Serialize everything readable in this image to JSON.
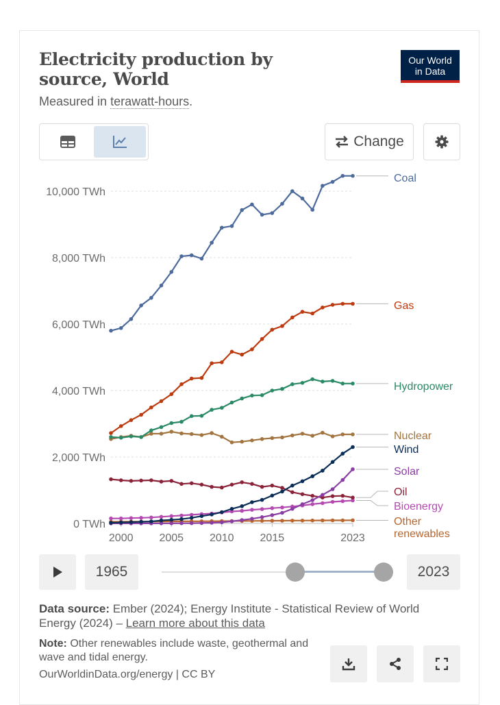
{
  "header": {
    "title": "Electricity production by source, World",
    "subtitle_prefix": "Measured in ",
    "subtitle_term": "terawatt-hours",
    "subtitle_suffix": "."
  },
  "logo": {
    "line1": "Our World",
    "line2": "in Data"
  },
  "controls": {
    "change_label": "Change"
  },
  "timeline": {
    "start_year": "1965",
    "end_year": "2023",
    "range_start_fraction": 0.6,
    "range_end_fraction": 1.0
  },
  "footer": {
    "source_label": "Data source:",
    "source_text": " Ember (2024); Energy Institute - Statistical Review of World Energy (2024) – ",
    "source_link": "Learn more about this data",
    "note_label": "Note:",
    "note_text": " Other renewables include waste, geothermal and wave and tidal energy.",
    "credit": "OurWorldinData.org/energy | CC BY"
  },
  "colors": {
    "coal": "#4c6a9c",
    "gas": "#bd3b10",
    "hydropower": "#2a8a66",
    "nuclear": "#a2743f",
    "wind": "#0a2d57",
    "solar": "#8a3ea3",
    "oil": "#8b2338",
    "bioenergy": "#b44ab1",
    "other_renewables": "#b8652e"
  },
  "chart_data": {
    "type": "line",
    "x": [
      1999,
      2000,
      2001,
      2002,
      2003,
      2004,
      2005,
      2006,
      2007,
      2008,
      2009,
      2010,
      2011,
      2012,
      2013,
      2014,
      2015,
      2016,
      2017,
      2018,
      2019,
      2020,
      2021,
      2022,
      2023
    ],
    "x_ticks": [
      2000,
      2005,
      2010,
      2015,
      2023
    ],
    "y_ticks": [
      0,
      2000,
      4000,
      6000,
      8000,
      10000
    ],
    "y_tick_labels": [
      "0 TWh",
      "2,000 TWh",
      "4,000 TWh",
      "6,000 TWh",
      "8,000 TWh",
      "10,000 TWh"
    ],
    "xlim": [
      1999,
      2023
    ],
    "ylim": [
      0,
      10500
    ],
    "series": [
      {
        "name": "Coal",
        "key": "coal",
        "values": [
          5800,
          5880,
          6150,
          6560,
          6790,
          7160,
          7570,
          8040,
          8070,
          7970,
          8450,
          8900,
          8950,
          9430,
          9600,
          9290,
          9340,
          9620,
          10000,
          9780,
          9440,
          10160,
          10280,
          10460,
          10460
        ]
      },
      {
        "name": "Gas",
        "key": "gas",
        "values": [
          2720,
          2930,
          3110,
          3270,
          3490,
          3680,
          3890,
          4190,
          4360,
          4380,
          4820,
          4850,
          5170,
          5080,
          5240,
          5550,
          5830,
          5940,
          6200,
          6370,
          6320,
          6500,
          6580,
          6610,
          6610
        ]
      },
      {
        "name": "Hydropower",
        "key": "hydropower",
        "values": [
          2600,
          2580,
          2620,
          2600,
          2800,
          2900,
          3020,
          3060,
          3230,
          3240,
          3420,
          3480,
          3640,
          3760,
          3850,
          3860,
          4000,
          4050,
          4190,
          4230,
          4340,
          4270,
          4290,
          4210,
          4210
        ]
      },
      {
        "name": "Nuclear",
        "key": "nuclear",
        "values": [
          2540,
          2600,
          2640,
          2600,
          2700,
          2700,
          2760,
          2710,
          2690,
          2660,
          2720,
          2610,
          2440,
          2460,
          2500,
          2540,
          2570,
          2590,
          2650,
          2700,
          2640,
          2730,
          2620,
          2680,
          2680
        ]
      },
      {
        "name": "Wind",
        "key": "wind",
        "values": [
          20,
          30,
          40,
          50,
          60,
          90,
          110,
          130,
          170,
          220,
          270,
          340,
          440,
          520,
          640,
          710,
          840,
          960,
          1140,
          1270,
          1420,
          1590,
          1850,
          2100,
          2300
        ]
      },
      {
        "name": "Solar",
        "key": "solar",
        "values": [
          2,
          2,
          2,
          2,
          3,
          4,
          5,
          7,
          9,
          13,
          20,
          32,
          63,
          100,
          140,
          190,
          250,
          320,
          440,
          580,
          700,
          860,
          1030,
          1310,
          1630
        ]
      },
      {
        "name": "Oil",
        "key": "oil",
        "values": [
          1330,
          1300,
          1280,
          1290,
          1300,
          1260,
          1280,
          1190,
          1210,
          1170,
          1100,
          1080,
          1170,
          1240,
          1190,
          1100,
          1140,
          1070,
          940,
          880,
          830,
          780,
          820,
          830,
          780
        ]
      },
      {
        "name": "Bioenergy",
        "key": "bioenergy",
        "values": [
          150,
          150,
          160,
          170,
          180,
          200,
          220,
          240,
          260,
          280,
          300,
          330,
          360,
          380,
          410,
          430,
          460,
          480,
          510,
          540,
          580,
          610,
          650,
          670,
          690
        ]
      },
      {
        "name": "Other renewables",
        "key": "other_renewables",
        "values": [
          50,
          52,
          54,
          56,
          58,
          60,
          62,
          64,
          66,
          67,
          68,
          70,
          72,
          74,
          76,
          78,
          80,
          82,
          84,
          86,
          88,
          90,
          92,
          93,
          94
        ]
      }
    ],
    "series_labels": [
      "Coal",
      "Gas",
      "Hydropower",
      "Nuclear",
      "Wind",
      "Solar",
      "Oil",
      "Bioenergy",
      "Other",
      "renewables"
    ]
  }
}
